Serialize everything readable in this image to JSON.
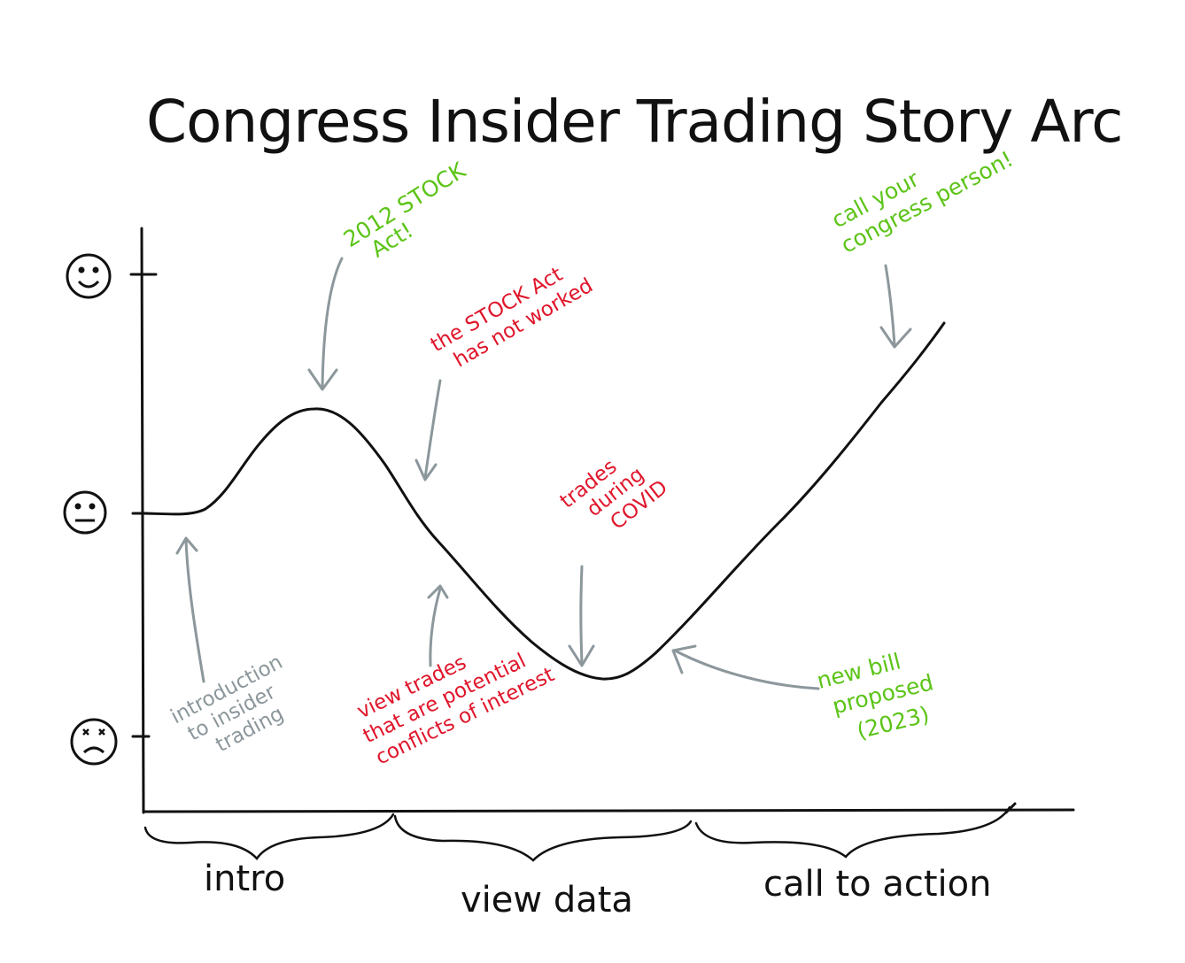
{
  "title": "Congress Insider Trading Story Arc",
  "emotion_levels": [
    {
      "name": "happy",
      "icon": "smiley-face-icon"
    },
    {
      "name": "neutral",
      "icon": "neutral-face-icon"
    },
    {
      "name": "angry",
      "icon": "angry-face-icon"
    }
  ],
  "sections": [
    "intro",
    "view data",
    "call to action"
  ],
  "annotations": {
    "intro_note": {
      "lines": [
        "introduction",
        "to insider",
        "trading"
      ],
      "color": "#8c979c"
    },
    "stock_act": {
      "lines": [
        "2012 STOCK",
        "Act!"
      ],
      "color": "#5cc417"
    },
    "not_worked": {
      "lines": [
        "the STOCK Act",
        "has not worked"
      ],
      "color": "#e0162b"
    },
    "view_trades": {
      "lines": [
        "view trades",
        "that are potential",
        "conflicts of interest"
      ],
      "color": "#e0162b"
    },
    "covid": {
      "lines": [
        "trades",
        "during",
        "COVID"
      ],
      "color": "#e0162b"
    },
    "new_bill": {
      "lines": [
        "new bill",
        "proposed",
        "(2023)"
      ],
      "color": "#5cc417"
    },
    "call_congress": {
      "lines": [
        "call your",
        "congress person!"
      ],
      "color": "#5cc417"
    }
  },
  "colors": {
    "line": "#111111",
    "arrow": "#8c979c",
    "red": "#e0162b",
    "green": "#5cc417"
  }
}
